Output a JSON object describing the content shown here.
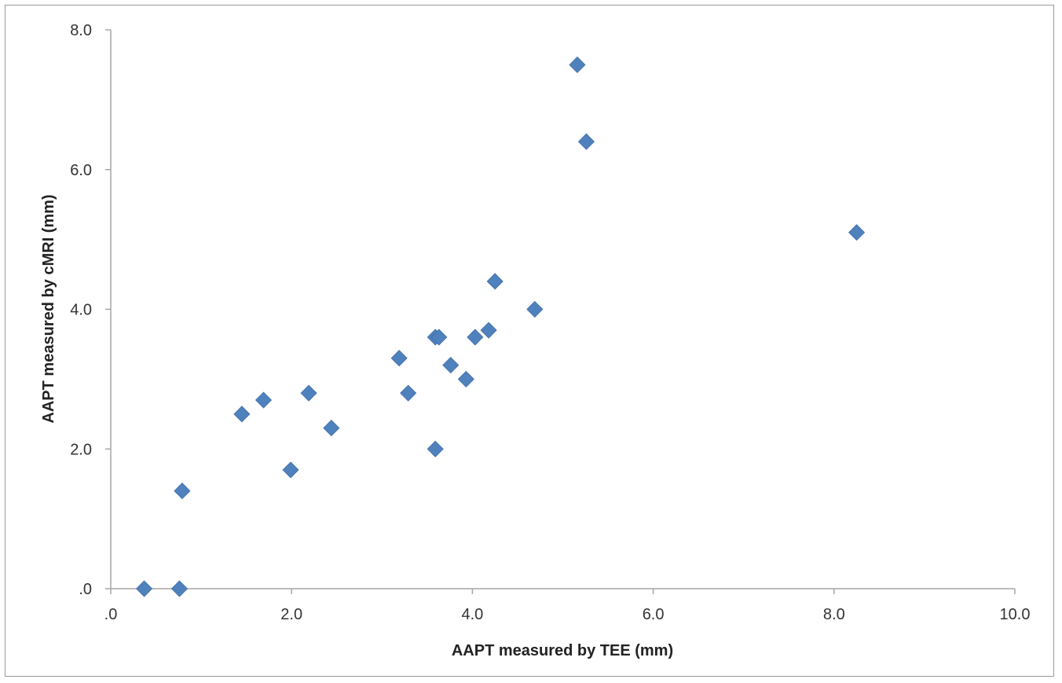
{
  "chart_data": {
    "type": "scatter",
    "title": "",
    "xlabel": "AAPT measured by TEE (mm)",
    "ylabel": "AAPT measured by cMRI (mm)",
    "xlim": [
      0,
      10
    ],
    "ylim": [
      0,
      8
    ],
    "x_ticks": [
      ".0",
      "2.0",
      "4.0",
      "6.0",
      "8.0",
      "10.0"
    ],
    "y_ticks": [
      ".0",
      "2.0",
      "4.0",
      "6.0",
      "8.0"
    ],
    "grid": false,
    "legend": "none",
    "marker": "diamond",
    "marker_color": "#4f81bd",
    "points": [
      {
        "x": 0.37,
        "y": 0.0
      },
      {
        "x": 0.76,
        "y": 0.0
      },
      {
        "x": 0.79,
        "y": 1.4
      },
      {
        "x": 1.45,
        "y": 2.5
      },
      {
        "x": 1.69,
        "y": 2.7
      },
      {
        "x": 1.99,
        "y": 1.7
      },
      {
        "x": 2.19,
        "y": 2.8
      },
      {
        "x": 2.44,
        "y": 2.3
      },
      {
        "x": 3.19,
        "y": 3.3
      },
      {
        "x": 3.29,
        "y": 2.8
      },
      {
        "x": 3.59,
        "y": 3.6
      },
      {
        "x": 3.63,
        "y": 3.6
      },
      {
        "x": 3.59,
        "y": 2.0
      },
      {
        "x": 3.76,
        "y": 3.2
      },
      {
        "x": 3.93,
        "y": 3.0
      },
      {
        "x": 4.03,
        "y": 3.6
      },
      {
        "x": 4.18,
        "y": 3.7
      },
      {
        "x": 4.25,
        "y": 4.4
      },
      {
        "x": 4.69,
        "y": 4.0
      },
      {
        "x": 5.16,
        "y": 7.5
      },
      {
        "x": 5.26,
        "y": 6.4
      },
      {
        "x": 8.25,
        "y": 5.1
      }
    ]
  }
}
